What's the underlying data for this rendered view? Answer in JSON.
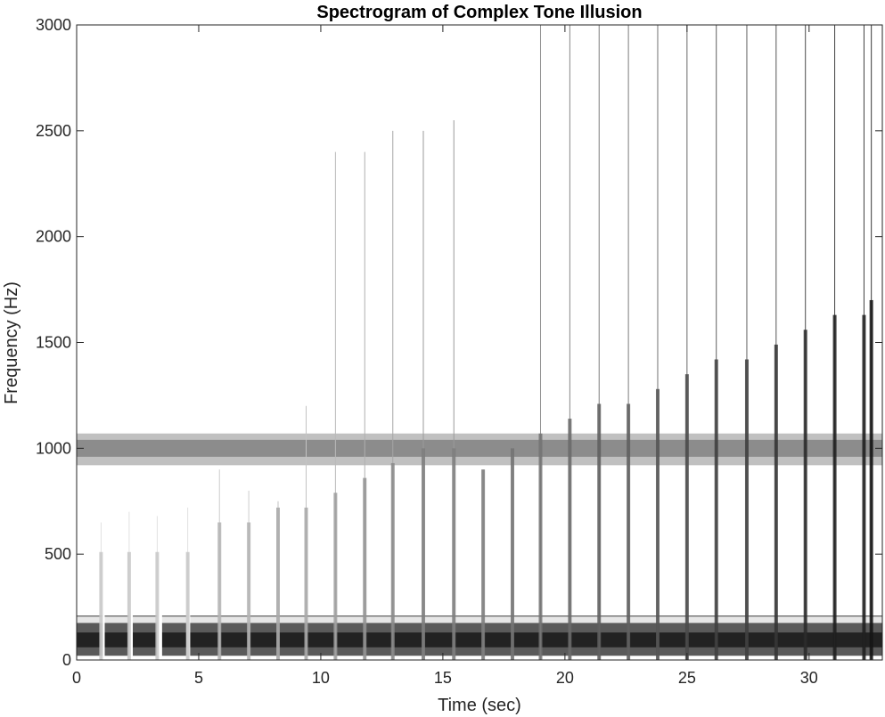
{
  "chart_data": {
    "type": "heatmap",
    "title": "Spectrogram of Complex Tone Illusion",
    "xlabel": "Time (sec)",
    "ylabel": "Frequency (Hz)",
    "xlim": [
      0,
      33
    ],
    "ylim": [
      0,
      3000
    ],
    "xticks": [
      0,
      5,
      10,
      15,
      20,
      25,
      30
    ],
    "yticks": [
      0,
      500,
      1000,
      1500,
      2000,
      2500,
      3000
    ],
    "grid": false,
    "colormap": "grayscale",
    "bands": [
      {
        "name": "1000 Hz tone",
        "f_low": 920,
        "f_high": 1070,
        "core_low": 960,
        "core_high": 1040,
        "t_start": 0,
        "t_end": 33,
        "edge_color": "#c0c0c0",
        "core_color": "#8c8c8c"
      },
      {
        "name": "100 Hz tone",
        "f_low": 20,
        "f_high": 210,
        "core_low": 60,
        "core_high": 130,
        "t_start": 0,
        "t_end": 33,
        "edge_color": "#5a5a5a",
        "core_color": "#222222"
      }
    ],
    "gaps_in_low_band": [
      {
        "t_start": 1.05,
        "t_end": 1.15
      },
      {
        "t_start": 2.15,
        "t_end": 2.3
      },
      {
        "t_start": 3.3,
        "t_end": 3.5
      },
      {
        "t_start": 4.5,
        "t_end": 4.65
      }
    ],
    "clicks": [
      {
        "t": 1.0,
        "f_max": 650,
        "intensity": 0.15
      },
      {
        "t": 2.15,
        "f_max": 700,
        "intensity": 0.15
      },
      {
        "t": 3.3,
        "f_max": 680,
        "intensity": 0.15
      },
      {
        "t": 4.55,
        "f_max": 720,
        "intensity": 0.15
      },
      {
        "t": 5.85,
        "f_max": 900,
        "intensity": 0.25
      },
      {
        "t": 7.05,
        "f_max": 800,
        "intensity": 0.25
      },
      {
        "t": 8.25,
        "f_max": 750,
        "intensity": 0.3
      },
      {
        "t": 9.4,
        "f_max": 1200,
        "intensity": 0.3
      },
      {
        "t": 10.6,
        "f_max": 2400,
        "intensity": 0.35
      },
      {
        "t": 11.8,
        "f_max": 2400,
        "intensity": 0.4
      },
      {
        "t": 12.95,
        "f_max": 2500,
        "intensity": 0.45
      },
      {
        "t": 14.2,
        "f_max": 2500,
        "intensity": 0.5
      },
      {
        "t": 15.45,
        "f_max": 2550,
        "intensity": 0.5
      },
      {
        "t": 16.65,
        "f_max": 900,
        "intensity": 0.5
      },
      {
        "t": 17.85,
        "f_max": 1000,
        "intensity": 0.55
      },
      {
        "t": 19.0,
        "f_max": 3000,
        "intensity": 0.55
      },
      {
        "t": 20.2,
        "f_max": 3000,
        "intensity": 0.6
      },
      {
        "t": 21.4,
        "f_max": 3000,
        "intensity": 0.65
      },
      {
        "t": 22.6,
        "f_max": 3000,
        "intensity": 0.65
      },
      {
        "t": 23.8,
        "f_max": 3000,
        "intensity": 0.7
      },
      {
        "t": 25.0,
        "f_max": 3000,
        "intensity": 0.75
      },
      {
        "t": 26.2,
        "f_max": 3000,
        "intensity": 0.8
      },
      {
        "t": 27.45,
        "f_max": 3000,
        "intensity": 0.8
      },
      {
        "t": 28.65,
        "f_max": 3000,
        "intensity": 0.85
      },
      {
        "t": 29.85,
        "f_max": 3000,
        "intensity": 0.9
      },
      {
        "t": 31.05,
        "f_max": 3000,
        "intensity": 0.95
      },
      {
        "t": 32.25,
        "f_max": 3000,
        "intensity": 0.95
      },
      {
        "t": 32.55,
        "f_max": 3000,
        "intensity": 1.0
      }
    ]
  }
}
